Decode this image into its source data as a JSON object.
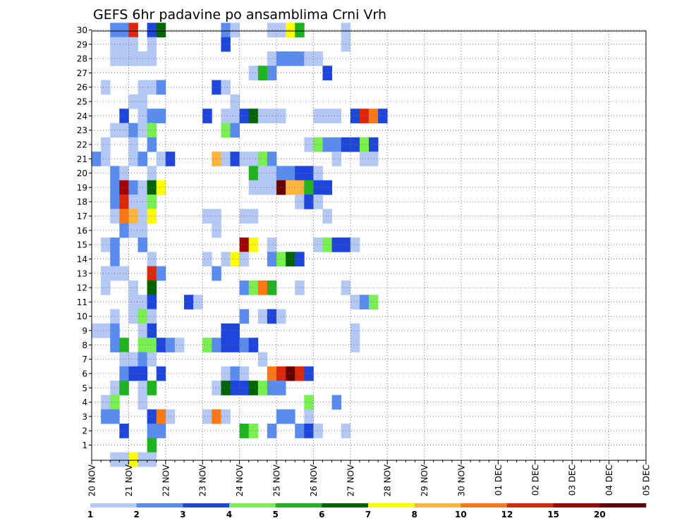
{
  "chart_data": {
    "type": "heatmap",
    "title": "GEFS 6hr padavine po ansamblima Crni Vrh",
    "xlabel": "",
    "ylabel": "",
    "x_tick_labels": [
      "20 NOV",
      "21 NOV",
      "22 NOV",
      "23 NOV",
      "24 NOV",
      "25 NOV",
      "26 NOV",
      "27 NOV",
      "28 NOV",
      "29 NOV",
      "30 NOV",
      "01 DEC",
      "02 DEC",
      "03 DEC",
      "04 DEC",
      "05 DEC"
    ],
    "y_tick_labels": [
      "1",
      "2",
      "3",
      "4",
      "5",
      "6",
      "7",
      "8",
      "9",
      "10",
      "11",
      "12",
      "13",
      "14",
      "15",
      "16",
      "17",
      "18",
      "19",
      "20",
      "21",
      "22",
      "23",
      "24",
      "25",
      "26",
      "27",
      "28",
      "29",
      "30"
    ],
    "time_steps_per_day": 4,
    "n_time_steps": 61,
    "ensemble_members": [
      1,
      30
    ],
    "grid": true,
    "colorbar": {
      "labels": [
        "1",
        "2",
        "3",
        "4",
        "5",
        "6",
        "7",
        "8",
        "10",
        "12",
        "15",
        "20"
      ],
      "colors": [
        "#b4c8f5",
        "#5a8cf0",
        "#1e46dc",
        "#78f050",
        "#1eb41e",
        "#006400",
        "#ffff00",
        "#ffb43c",
        "#ff7814",
        "#dc280a",
        "#a00000",
        "#640000"
      ]
    },
    "cells": [
      [
        30,
        2,
        1
      ],
      [
        30,
        3,
        1
      ],
      [
        30,
        4,
        9
      ],
      [
        30,
        6,
        2
      ],
      [
        30,
        7,
        5
      ],
      [
        30,
        14,
        1
      ],
      [
        30,
        15,
        0
      ],
      [
        30,
        19,
        0
      ],
      [
        30,
        20,
        0
      ],
      [
        30,
        21,
        6
      ],
      [
        30,
        22,
        4
      ],
      [
        30,
        27,
        0
      ],
      [
        29,
        2,
        0
      ],
      [
        29,
        3,
        0
      ],
      [
        29,
        4,
        0
      ],
      [
        29,
        6,
        0
      ],
      [
        29,
        14,
        2
      ],
      [
        29,
        27,
        0
      ],
      [
        28,
        2,
        0
      ],
      [
        28,
        3,
        0
      ],
      [
        28,
        4,
        0
      ],
      [
        28,
        5,
        0
      ],
      [
        28,
        6,
        0
      ],
      [
        28,
        19,
        0
      ],
      [
        28,
        20,
        1
      ],
      [
        28,
        21,
        1
      ],
      [
        28,
        22,
        1
      ],
      [
        28,
        23,
        0
      ],
      [
        28,
        24,
        0
      ],
      [
        27,
        17,
        0
      ],
      [
        27,
        18,
        4
      ],
      [
        27,
        19,
        1
      ],
      [
        27,
        25,
        2
      ],
      [
        26,
        1,
        0
      ],
      [
        26,
        5,
        0
      ],
      [
        26,
        6,
        0
      ],
      [
        26,
        7,
        1
      ],
      [
        26,
        13,
        2
      ],
      [
        26,
        14,
        0
      ],
      [
        25,
        4,
        0
      ],
      [
        25,
        5,
        0
      ],
      [
        25,
        15,
        0
      ],
      [
        24,
        3,
        2
      ],
      [
        24,
        5,
        0
      ],
      [
        24,
        6,
        1
      ],
      [
        24,
        7,
        1
      ],
      [
        24,
        12,
        2
      ],
      [
        24,
        14,
        0
      ],
      [
        24,
        15,
        0
      ],
      [
        24,
        16,
        2
      ],
      [
        24,
        17,
        5
      ],
      [
        24,
        18,
        0
      ],
      [
        24,
        19,
        0
      ],
      [
        24,
        20,
        0
      ],
      [
        24,
        24,
        0
      ],
      [
        24,
        25,
        0
      ],
      [
        24,
        26,
        0
      ],
      [
        24,
        28,
        2
      ],
      [
        24,
        29,
        9
      ],
      [
        24,
        30,
        8
      ],
      [
        24,
        31,
        2
      ],
      [
        23,
        2,
        0
      ],
      [
        23,
        3,
        0
      ],
      [
        23,
        4,
        1
      ],
      [
        23,
        5,
        0
      ],
      [
        23,
        6,
        3
      ],
      [
        23,
        14,
        3
      ],
      [
        23,
        15,
        1
      ],
      [
        22,
        1,
        0
      ],
      [
        22,
        4,
        0
      ],
      [
        22,
        6,
        1
      ],
      [
        22,
        23,
        0
      ],
      [
        22,
        24,
        3
      ],
      [
        22,
        25,
        1
      ],
      [
        22,
        26,
        1
      ],
      [
        22,
        27,
        2
      ],
      [
        22,
        28,
        2
      ],
      [
        22,
        29,
        3
      ],
      [
        22,
        30,
        2
      ],
      [
        21,
        0,
        1
      ],
      [
        21,
        1,
        0
      ],
      [
        21,
        4,
        0
      ],
      [
        21,
        5,
        1
      ],
      [
        21,
        7,
        0
      ],
      [
        21,
        8,
        2
      ],
      [
        21,
        13,
        7
      ],
      [
        21,
        14,
        0
      ],
      [
        21,
        15,
        2
      ],
      [
        21,
        16,
        0
      ],
      [
        21,
        17,
        0
      ],
      [
        21,
        18,
        3
      ],
      [
        21,
        19,
        1
      ],
      [
        21,
        26,
        0
      ],
      [
        21,
        29,
        0
      ],
      [
        21,
        30,
        0
      ],
      [
        20,
        2,
        1
      ],
      [
        20,
        3,
        0
      ],
      [
        20,
        6,
        0
      ],
      [
        20,
        17,
        4
      ],
      [
        20,
        18,
        0
      ],
      [
        20,
        19,
        0
      ],
      [
        20,
        20,
        1
      ],
      [
        20,
        21,
        1
      ],
      [
        20,
        22,
        2
      ],
      [
        20,
        23,
        2
      ],
      [
        20,
        24,
        0
      ],
      [
        19,
        2,
        1
      ],
      [
        19,
        3,
        10
      ],
      [
        19,
        4,
        1
      ],
      [
        19,
        5,
        0
      ],
      [
        19,
        6,
        5
      ],
      [
        19,
        7,
        6
      ],
      [
        19,
        17,
        0
      ],
      [
        19,
        18,
        0
      ],
      [
        19,
        19,
        0
      ],
      [
        19,
        20,
        11
      ],
      [
        19,
        21,
        7
      ],
      [
        19,
        22,
        7
      ],
      [
        19,
        23,
        4
      ],
      [
        19,
        24,
        2
      ],
      [
        19,
        25,
        2
      ],
      [
        18,
        2,
        1
      ],
      [
        18,
        3,
        9
      ],
      [
        18,
        4,
        0
      ],
      [
        18,
        5,
        0
      ],
      [
        18,
        6,
        3
      ],
      [
        18,
        22,
        0
      ],
      [
        18,
        23,
        2
      ],
      [
        18,
        24,
        0
      ],
      [
        17,
        2,
        0
      ],
      [
        17,
        3,
        8
      ],
      [
        17,
        4,
        7
      ],
      [
        17,
        5,
        0
      ],
      [
        17,
        6,
        6
      ],
      [
        17,
        12,
        0
      ],
      [
        17,
        13,
        0
      ],
      [
        17,
        16,
        0
      ],
      [
        17,
        17,
        0
      ],
      [
        17,
        25,
        0
      ],
      [
        16,
        3,
        1
      ],
      [
        16,
        4,
        0
      ],
      [
        16,
        5,
        0
      ],
      [
        16,
        13,
        0
      ],
      [
        15,
        1,
        0
      ],
      [
        15,
        2,
        1
      ],
      [
        15,
        5,
        1
      ],
      [
        15,
        16,
        10
      ],
      [
        15,
        17,
        6
      ],
      [
        15,
        19,
        0
      ],
      [
        15,
        24,
        0
      ],
      [
        15,
        25,
        3
      ],
      [
        15,
        26,
        2
      ],
      [
        15,
        27,
        2
      ],
      [
        15,
        28,
        0
      ],
      [
        14,
        2,
        1
      ],
      [
        14,
        6,
        0
      ],
      [
        14,
        12,
        0
      ],
      [
        14,
        14,
        0
      ],
      [
        14,
        15,
        6
      ],
      [
        14,
        16,
        0
      ],
      [
        14,
        19,
        1
      ],
      [
        14,
        20,
        3
      ],
      [
        14,
        21,
        5
      ],
      [
        14,
        22,
        2
      ],
      [
        13,
        1,
        0
      ],
      [
        13,
        2,
        0
      ],
      [
        13,
        3,
        0
      ],
      [
        13,
        6,
        9
      ],
      [
        13,
        7,
        1
      ],
      [
        13,
        13,
        1
      ],
      [
        12,
        1,
        0
      ],
      [
        12,
        4,
        0
      ],
      [
        12,
        6,
        5
      ],
      [
        12,
        16,
        1
      ],
      [
        12,
        17,
        3
      ],
      [
        12,
        18,
        8
      ],
      [
        12,
        19,
        4
      ],
      [
        12,
        22,
        0
      ],
      [
        12,
        27,
        0
      ],
      [
        11,
        4,
        0
      ],
      [
        11,
        5,
        0
      ],
      [
        11,
        6,
        2
      ],
      [
        11,
        10,
        2
      ],
      [
        11,
        11,
        0
      ],
      [
        11,
        28,
        0
      ],
      [
        11,
        29,
        1
      ],
      [
        11,
        30,
        3
      ],
      [
        10,
        2,
        0
      ],
      [
        10,
        4,
        0
      ],
      [
        10,
        5,
        3
      ],
      [
        10,
        6,
        0
      ],
      [
        10,
        16,
        1
      ],
      [
        10,
        18,
        0
      ],
      [
        10,
        19,
        2
      ],
      [
        10,
        20,
        0
      ],
      [
        9,
        0,
        0
      ],
      [
        9,
        1,
        0
      ],
      [
        9,
        2,
        1
      ],
      [
        9,
        5,
        0
      ],
      [
        9,
        6,
        2
      ],
      [
        9,
        14,
        2
      ],
      [
        9,
        15,
        2
      ],
      [
        9,
        28,
        0
      ],
      [
        8,
        2,
        1
      ],
      [
        8,
        3,
        4
      ],
      [
        8,
        5,
        3
      ],
      [
        8,
        6,
        3
      ],
      [
        8,
        7,
        2
      ],
      [
        8,
        8,
        1
      ],
      [
        8,
        9,
        0
      ],
      [
        8,
        12,
        3
      ],
      [
        8,
        13,
        1
      ],
      [
        8,
        14,
        2
      ],
      [
        8,
        15,
        2
      ],
      [
        8,
        16,
        1
      ],
      [
        8,
        17,
        2
      ],
      [
        8,
        28,
        0
      ],
      [
        7,
        3,
        0
      ],
      [
        7,
        4,
        0
      ],
      [
        7,
        5,
        1
      ],
      [
        7,
        6,
        0
      ],
      [
        7,
        18,
        0
      ],
      [
        6,
        3,
        1
      ],
      [
        6,
        4,
        2
      ],
      [
        6,
        5,
        2
      ],
      [
        6,
        7,
        2
      ],
      [
        6,
        14,
        0
      ],
      [
        6,
        15,
        1
      ],
      [
        6,
        16,
        0
      ],
      [
        6,
        19,
        8
      ],
      [
        6,
        20,
        9
      ],
      [
        6,
        21,
        11
      ],
      [
        6,
        22,
        9
      ],
      [
        6,
        23,
        2
      ],
      [
        5,
        2,
        0
      ],
      [
        5,
        3,
        4
      ],
      [
        5,
        5,
        0
      ],
      [
        5,
        6,
        4
      ],
      [
        5,
        13,
        0
      ],
      [
        5,
        14,
        5
      ],
      [
        5,
        15,
        2
      ],
      [
        5,
        16,
        2
      ],
      [
        5,
        17,
        5
      ],
      [
        5,
        18,
        3
      ],
      [
        5,
        19,
        1
      ],
      [
        5,
        20,
        1
      ],
      [
        4,
        1,
        0
      ],
      [
        4,
        2,
        3
      ],
      [
        4,
        5,
        0
      ],
      [
        4,
        23,
        3
      ],
      [
        4,
        26,
        1
      ],
      [
        3,
        1,
        1
      ],
      [
        3,
        2,
        1
      ],
      [
        3,
        6,
        2
      ],
      [
        3,
        7,
        8
      ],
      [
        3,
        8,
        0
      ],
      [
        3,
        12,
        0
      ],
      [
        3,
        13,
        8
      ],
      [
        3,
        14,
        0
      ],
      [
        3,
        20,
        1
      ],
      [
        3,
        21,
        1
      ],
      [
        3,
        23,
        0
      ],
      [
        2,
        3,
        2
      ],
      [
        2,
        6,
        1
      ],
      [
        2,
        7,
        1
      ],
      [
        2,
        16,
        4
      ],
      [
        2,
        17,
        3
      ],
      [
        2,
        19,
        1
      ],
      [
        2,
        22,
        1
      ],
      [
        2,
        23,
        2
      ],
      [
        2,
        24,
        0
      ],
      [
        2,
        27,
        0
      ],
      [
        1,
        6,
        4
      ],
      [
        0,
        2,
        0
      ],
      [
        0,
        3,
        0
      ],
      [
        0,
        4,
        6
      ],
      [
        0,
        5,
        0
      ],
      [
        0,
        6,
        0
      ]
    ]
  }
}
